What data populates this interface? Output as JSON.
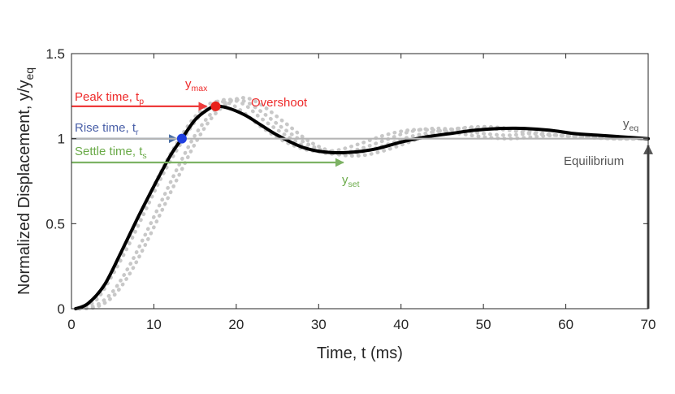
{
  "chart_data": {
    "type": "line",
    "xlabel": "Time, t (ms)",
    "ylabel_main": "Normalized Displacement, y/y",
    "ylabel_sub": "eq",
    "xlim": [
      0,
      70
    ],
    "ylim": [
      0,
      1.5
    ],
    "xticks": [
      0,
      10,
      20,
      30,
      40,
      50,
      60,
      70
    ],
    "yticks": [
      0,
      0.5,
      1,
      1.5
    ],
    "ytick_labels": [
      "0",
      "0.5",
      "1",
      "1.5"
    ],
    "grid": false,
    "series": [
      {
        "name": "response",
        "color": "#000000",
        "x": [
          0.5,
          2,
          4,
          6,
          8,
          10,
          12,
          13.4,
          15,
          16.5,
          17.5,
          19,
          21,
          23,
          25,
          28,
          31,
          34,
          37,
          40,
          43,
          46,
          49,
          52,
          55,
          58,
          61,
          64,
          67,
          70
        ],
        "y": [
          0,
          0.03,
          0.14,
          0.33,
          0.53,
          0.72,
          0.9,
          1.0,
          1.11,
          1.17,
          1.19,
          1.18,
          1.14,
          1.08,
          1.02,
          0.95,
          0.92,
          0.92,
          0.94,
          0.98,
          1.01,
          1.03,
          1.05,
          1.06,
          1.06,
          1.05,
          1.03,
          1.02,
          1.01,
          1.0
        ]
      },
      {
        "name": "trial 1",
        "color": "#c8c8c8",
        "x": [
          1,
          3,
          5,
          7,
          9,
          11,
          13,
          15,
          17,
          19,
          21,
          23,
          26,
          29,
          32,
          35,
          38,
          41,
          44,
          47,
          50,
          53,
          56,
          59,
          62,
          66,
          70
        ],
        "y": [
          0,
          0.05,
          0.2,
          0.38,
          0.58,
          0.78,
          0.95,
          1.1,
          1.2,
          1.23,
          1.2,
          1.12,
          1.02,
          0.94,
          0.91,
          0.94,
          0.99,
          1.04,
          1.06,
          1.05,
          1.03,
          1.02,
          1.03,
          1.02,
          1.01,
          1.0,
          1.0
        ]
      },
      {
        "name": "trial 2",
        "color": "#c8c8c8",
        "x": [
          1,
          3,
          5,
          7,
          9,
          11,
          13,
          15,
          17,
          19,
          21,
          23,
          26,
          29,
          32,
          35,
          38,
          41,
          44,
          47,
          50,
          53,
          56,
          59,
          62,
          66,
          70
        ],
        "y": [
          0,
          0.02,
          0.1,
          0.25,
          0.44,
          0.64,
          0.84,
          1.02,
          1.15,
          1.22,
          1.22,
          1.16,
          1.05,
          0.96,
          0.91,
          0.9,
          0.93,
          0.98,
          1.03,
          1.06,
          1.07,
          1.06,
          1.04,
          1.02,
          1.01,
          1.0,
          1.0
        ]
      },
      {
        "name": "trial 3",
        "color": "#c8c8c8",
        "x": [
          1,
          3,
          5,
          7,
          9,
          11,
          13,
          15,
          17,
          19,
          21,
          23,
          26,
          29,
          32,
          35,
          38,
          41,
          44,
          47,
          50,
          53,
          56,
          59,
          62,
          66,
          70
        ],
        "y": [
          0,
          0.06,
          0.22,
          0.42,
          0.62,
          0.82,
          0.99,
          1.13,
          1.21,
          1.21,
          1.15,
          1.07,
          0.98,
          0.93,
          0.93,
          0.97,
          1.02,
          1.05,
          1.05,
          1.03,
          1.01,
          1.0,
          1.01,
          1.02,
          1.01,
          1.0,
          1.0
        ]
      },
      {
        "name": "trial 4",
        "color": "#c8c8c8",
        "x": [
          1,
          3,
          5,
          7,
          9,
          11,
          13,
          15,
          17,
          19,
          21,
          23,
          26,
          29,
          32,
          35,
          38,
          41,
          44,
          47,
          50,
          53,
          56,
          59,
          62,
          66,
          70
        ],
        "y": [
          0,
          0.01,
          0.07,
          0.2,
          0.38,
          0.58,
          0.78,
          0.97,
          1.12,
          1.21,
          1.24,
          1.2,
          1.09,
          0.98,
          0.92,
          0.92,
          0.96,
          1.01,
          1.04,
          1.06,
          1.06,
          1.05,
          1.03,
          1.02,
          1.01,
          1.0,
          1.0
        ]
      }
    ],
    "markers": [
      {
        "name": "rise-point",
        "x": 13.4,
        "y": 1.0,
        "color": "#1f3fe0"
      },
      {
        "name": "peak-point",
        "x": 17.5,
        "y": 1.19,
        "color": "#e8211b"
      }
    ],
    "reference_lines": [
      {
        "name": "peak-time",
        "x_start": 0,
        "x_end": 16.4,
        "y": 1.19,
        "color": "#ee3b3b"
      },
      {
        "name": "rise-time",
        "x_start": 0,
        "x_end": 12.8,
        "y": 1.0,
        "color": "#4a6fa5"
      },
      {
        "name": "settle-time",
        "x_start": 0,
        "x_end": 33,
        "y": 0.86,
        "color": "#7db264"
      },
      {
        "name": "equilibrium-line",
        "x_start": 0,
        "x_end": 70,
        "y": 1.0,
        "color": "#b5b5b5"
      },
      {
        "name": "equilibrium-arrow",
        "x": 70,
        "y_start": 0,
        "y_end": 0.96,
        "color": "#555555"
      }
    ],
    "annotations": {
      "peak_time": {
        "main": "Peak time, t",
        "sub": "p",
        "color": "#ee2a2a"
      },
      "rise_time": {
        "main": "Rise time, t",
        "sub": "r",
        "color": "#4a60a8"
      },
      "settle_time": {
        "main": "Settle time, t",
        "sub": "s",
        "color": "#6aaa48"
      },
      "y_max": {
        "main": "y",
        "sub": "max",
        "color": "#ee2a2a"
      },
      "overshoot": {
        "text": "Overshoot",
        "color": "#ee2a2a"
      },
      "y_set": {
        "main": "y",
        "sub": "set",
        "color": "#6aaa48"
      },
      "y_eq": {
        "main": "y",
        "sub": "eq",
        "color": "#555555"
      },
      "equilibrium": {
        "text": "Equilibrium",
        "color": "#555555"
      }
    }
  }
}
